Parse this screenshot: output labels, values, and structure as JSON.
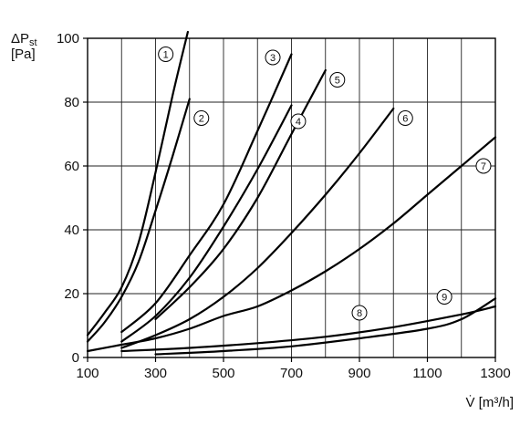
{
  "chart_data": {
    "type": "line",
    "ylabel_line1": "ΔP",
    "ylabel_sub": "st",
    "ylabel_line2": "[Pa]",
    "xlabel": "V̇ [m³/h]",
    "xlim": [
      100,
      1300
    ],
    "ylim": [
      0,
      100
    ],
    "x_ticks": [
      100,
      300,
      500,
      700,
      900,
      1100,
      1300
    ],
    "x_gridlines": [
      100,
      200,
      300,
      400,
      500,
      600,
      700,
      800,
      900,
      1000,
      1100,
      1200,
      1300
    ],
    "y_ticks": [
      0,
      20,
      40,
      60,
      80,
      100
    ],
    "grid": true,
    "line_color": "#000000",
    "series": [
      {
        "name": "①",
        "label_at": [
          330,
          95
        ],
        "points": [
          [
            100,
            7
          ],
          [
            150,
            14
          ],
          [
            200,
            22
          ],
          [
            250,
            36
          ],
          [
            300,
            58
          ],
          [
            350,
            82
          ],
          [
            395,
            102
          ]
        ]
      },
      {
        "name": "②",
        "label_at": [
          435,
          75
        ],
        "points": [
          [
            100,
            5
          ],
          [
            150,
            11
          ],
          [
            200,
            19
          ],
          [
            250,
            30
          ],
          [
            300,
            46
          ],
          [
            350,
            63
          ],
          [
            400,
            81
          ]
        ]
      },
      {
        "name": "③",
        "label_at": [
          645,
          94
        ],
        "points": [
          [
            200,
            8
          ],
          [
            300,
            17
          ],
          [
            400,
            32
          ],
          [
            500,
            48
          ],
          [
            600,
            71
          ],
          [
            700,
            95
          ]
        ]
      },
      {
        "name": "④",
        "label_at": [
          720,
          74
        ],
        "points": [
          [
            200,
            5
          ],
          [
            300,
            13
          ],
          [
            400,
            25
          ],
          [
            500,
            41
          ],
          [
            600,
            59
          ],
          [
            700,
            79
          ]
        ]
      },
      {
        "name": "⑤",
        "label_at": [
          835,
          87
        ],
        "points": [
          [
            300,
            12
          ],
          [
            400,
            22
          ],
          [
            500,
            34
          ],
          [
            600,
            50
          ],
          [
            700,
            70
          ],
          [
            800,
            90
          ]
        ]
      },
      {
        "name": "⑥",
        "label_at": [
          1035,
          75
        ],
        "points": [
          [
            200,
            3
          ],
          [
            300,
            7
          ],
          [
            400,
            12
          ],
          [
            500,
            19
          ],
          [
            600,
            28
          ],
          [
            700,
            39
          ],
          [
            800,
            51
          ],
          [
            900,
            64
          ],
          [
            1000,
            78
          ]
        ]
      },
      {
        "name": "⑦",
        "label_at": [
          1265,
          60
        ],
        "points": [
          [
            100,
            2
          ],
          [
            200,
            4
          ],
          [
            300,
            6
          ],
          [
            400,
            9
          ],
          [
            500,
            13
          ],
          [
            600,
            16
          ],
          [
            700,
            21
          ],
          [
            800,
            27
          ],
          [
            900,
            34
          ],
          [
            1000,
            42
          ],
          [
            1100,
            51
          ],
          [
            1200,
            60
          ],
          [
            1300,
            69
          ]
        ]
      },
      {
        "name": "⑧",
        "label_at": [
          900,
          14
        ],
        "points": [
          [
            200,
            2
          ],
          [
            400,
            3
          ],
          [
            600,
            4.5
          ],
          [
            800,
            6.5
          ],
          [
            1000,
            9.5
          ],
          [
            1200,
            13.5
          ],
          [
            1300,
            16
          ]
        ]
      },
      {
        "name": "⑨",
        "label_at": [
          1150,
          19
        ],
        "points": [
          [
            300,
            1
          ],
          [
            500,
            2
          ],
          [
            700,
            3.5
          ],
          [
            900,
            6
          ],
          [
            1100,
            9
          ],
          [
            1200,
            12
          ],
          [
            1300,
            18.5
          ]
        ]
      }
    ]
  }
}
